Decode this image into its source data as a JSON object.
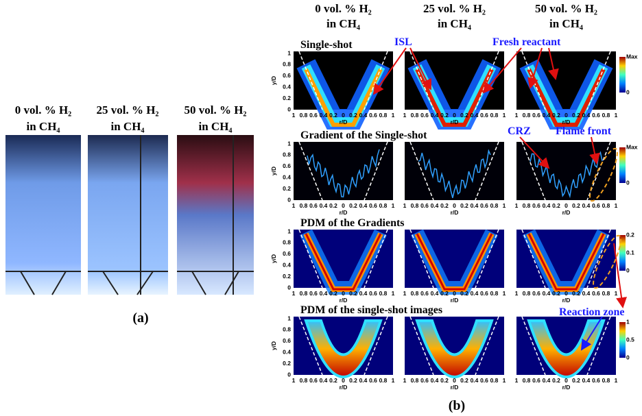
{
  "panel_a": {
    "headers": [
      {
        "line1": "0 vol. % H₂",
        "line2": "in CH₄"
      },
      {
        "line1": "25 vol. % H₂",
        "line2": "in CH₄"
      },
      {
        "line1": "50 vol. % H₂",
        "line2": "in CH₄"
      }
    ],
    "label": "(a)"
  },
  "panel_b": {
    "headers": [
      {
        "line1": "0 vol. % H₂",
        "line2": "in CH₄"
      },
      {
        "line1": "25 vol. % H₂",
        "line2": "in CH₄"
      },
      {
        "line1": "50 vol. % H₂",
        "line2": "in CH₄"
      }
    ],
    "rows": [
      {
        "title": "Single-shot",
        "colorbar": [
          "Max",
          "0"
        ]
      },
      {
        "title": "Gradient of the Single-shot",
        "colorbar": [
          "Max",
          "0"
        ]
      },
      {
        "title": "PDM of the Gradients",
        "colorbar": [
          "0.2",
          "0.1",
          "0"
        ]
      },
      {
        "title": "PDM of the single-shot images",
        "colorbar": [
          "1",
          "0.5",
          "0"
        ]
      }
    ],
    "y_ticks": [
      "1",
      "0.8",
      "0.6",
      "0.4",
      "0.2",
      "0"
    ],
    "x_ticks": [
      "1",
      "0.8",
      "0.6",
      "0.4",
      "0.2",
      "0",
      "0.2",
      "0.4",
      "0.6",
      "0.8",
      "1"
    ],
    "y_label": "y/D",
    "x_label": "r/D",
    "annotations": {
      "isl": "ISL",
      "fresh_reactant": "Fresh reactant",
      "crz": "CRZ",
      "flame_front": "Flame front",
      "reaction_zone": "Reaction zone"
    },
    "label": "(b)"
  }
}
